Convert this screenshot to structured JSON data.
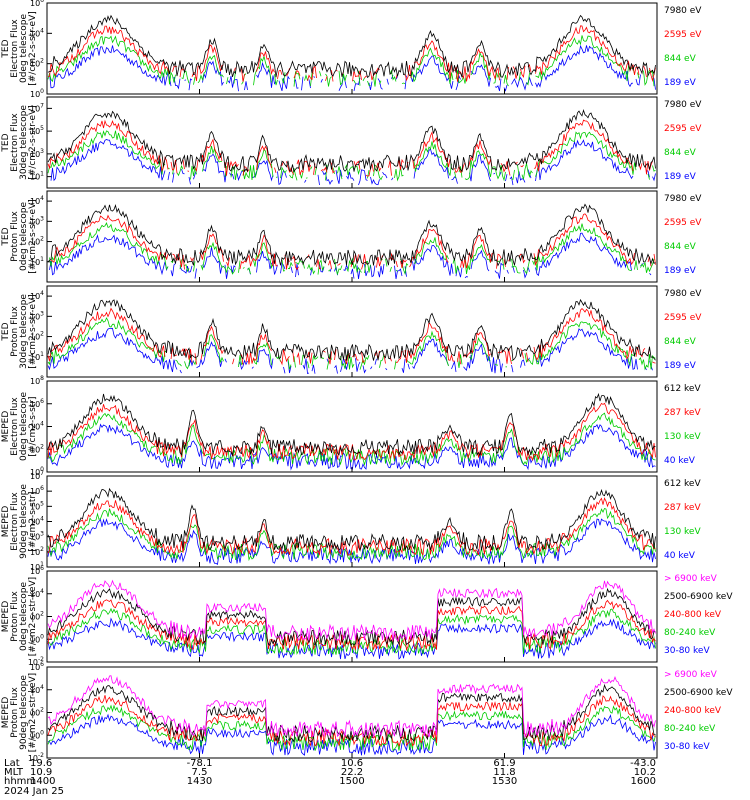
{
  "chart_data": {
    "type": "line",
    "panels": [
      {
        "instrument": "TED",
        "quantity": "Electron Flux",
        "telescope": "0deg telescope",
        "units": "[#/cm2-s-str-eV]",
        "yticks": [
          {
            "e": 6
          },
          {
            "e": 4
          },
          {
            "e": 2
          },
          {
            "e": 0
          }
        ],
        "ylim_exp": [
          0,
          6
        ],
        "legend": [
          {
            "label": "7980 eV",
            "color": "#000000"
          },
          {
            "label": "2595 eV",
            "color": "#ff0000"
          },
          {
            "label": "844 eV",
            "color": "#00cc00"
          },
          {
            "label": "189 eV",
            "color": "#0000ff"
          }
        ]
      },
      {
        "instrument": "TED",
        "quantity": "Electron Flux",
        "telescope": "30deg telescope",
        "units": "[#/cm2-s-str-eV]",
        "yticks": [
          {
            "e": 7
          },
          {
            "e": 5
          },
          {
            "e": 3
          },
          {
            "e": 1
          }
        ],
        "ylim_exp": [
          0,
          8
        ],
        "legend": [
          {
            "label": "7980 eV",
            "color": "#000000"
          },
          {
            "label": "2595 eV",
            "color": "#ff0000"
          },
          {
            "label": "844 eV",
            "color": "#00cc00"
          },
          {
            "label": "189 eV",
            "color": "#0000ff"
          }
        ]
      },
      {
        "instrument": "TED",
        "quantity": "Proton Flux",
        "telescope": "0deg telescope",
        "units": "[#/cm2-s-str-eV]",
        "yticks": [
          {
            "e": 4
          },
          {
            "e": 3
          },
          {
            "e": 2
          },
          {
            "e": 1
          }
        ],
        "ylim_exp": [
          0,
          4.5
        ],
        "legend": [
          {
            "label": "7980 eV",
            "color": "#000000"
          },
          {
            "label": "2595 eV",
            "color": "#ff0000"
          },
          {
            "label": "844 eV",
            "color": "#00cc00"
          },
          {
            "label": "189 eV",
            "color": "#0000ff"
          }
        ]
      },
      {
        "instrument": "TED",
        "quantity": "Proton Flux",
        "telescope": "30deg telescope",
        "units": "[#/cm2-s-str-eV]",
        "yticks": [
          {
            "e": 4
          },
          {
            "e": 3
          },
          {
            "e": 2
          },
          {
            "e": 1
          }
        ],
        "ylim_exp": [
          0,
          4.5
        ],
        "legend": [
          {
            "label": "7980 eV",
            "color": "#000000"
          },
          {
            "label": "2595 eV",
            "color": "#ff0000"
          },
          {
            "label": "844 eV",
            "color": "#00cc00"
          },
          {
            "label": "189 eV",
            "color": "#0000ff"
          }
        ]
      },
      {
        "instrument": "MEPED",
        "quantity": "Electron Flux",
        "telescope": "0deg telescope",
        "units": "[#/cm2-s-str]",
        "yticks": [
          {
            "e": 8
          },
          {
            "e": 6
          },
          {
            "e": 4
          },
          {
            "e": 2
          },
          {
            "e": 0
          }
        ],
        "ylim_exp": [
          0,
          8
        ],
        "legend": [
          {
            "label": "612 keV",
            "color": "#000000"
          },
          {
            "label": "287 keV",
            "color": "#ff0000"
          },
          {
            "label": "130 keV",
            "color": "#00cc00"
          },
          {
            "label": "40 keV",
            "color": "#0000ff"
          }
        ]
      },
      {
        "instrument": "MEPED",
        "quantity": "Electron Flux",
        "telescope": "90deg telescope",
        "units": "[#/cm2-s-str]",
        "yticks": [
          {
            "e": 7
          },
          {
            "e": 6
          },
          {
            "e": 5
          },
          {
            "e": 4
          },
          {
            "e": 3
          },
          {
            "e": 2
          },
          {
            "e": 1
          }
        ],
        "ylim_exp": [
          1,
          7
        ],
        "legend": [
          {
            "label": "612 keV",
            "color": "#000000"
          },
          {
            "label": "287 keV",
            "color": "#ff0000"
          },
          {
            "label": "130 keV",
            "color": "#00cc00"
          },
          {
            "label": "40 keV",
            "color": "#0000ff"
          }
        ]
      },
      {
        "instrument": "MEPED",
        "quantity": "Proton Flux",
        "telescope": "0deg telescope",
        "units": "[#/cm2-s-str-keV]",
        "yticks": [
          {
            "e": 6
          },
          {
            "e": 4
          },
          {
            "e": 2
          },
          {
            "e": 0
          },
          {
            "e": -2
          }
        ],
        "ylim_exp": [
          -2,
          6
        ],
        "legend": [
          {
            "label": "> 6900 keV",
            "color": "#ff00ff"
          },
          {
            "label": "2500-6900 keV",
            "color": "#000000"
          },
          {
            "label": "240-800 keV",
            "color": "#ff0000"
          },
          {
            "label": "80-240 keV",
            "color": "#00cc00"
          },
          {
            "label": "30-80 keV",
            "color": "#0000ff"
          }
        ]
      },
      {
        "instrument": "MEPED",
        "quantity": "Proton Flux",
        "telescope": "90deg telescope",
        "units": "[#/cm2-s-str-keV]",
        "yticks": [
          {
            "e": 6
          },
          {
            "e": 4
          },
          {
            "e": 2
          },
          {
            "e": 0
          },
          {
            "e": -2
          }
        ],
        "ylim_exp": [
          -2,
          6
        ],
        "legend": [
          {
            "label": "> 6900 keV",
            "color": "#ff00ff"
          },
          {
            "label": "2500-6900 keV",
            "color": "#000000"
          },
          {
            "label": "240-800 keV",
            "color": "#ff0000"
          },
          {
            "label": "80-240 keV",
            "color": "#00cc00"
          },
          {
            "label": "30-80 keV",
            "color": "#0000ff"
          }
        ]
      }
    ],
    "x_axis": {
      "row_labels": [
        "Lat",
        "MLT",
        "hhmm"
      ],
      "ticks": [
        {
          "lat": "19.6",
          "mlt": "10.9",
          "hhmm": "1400"
        },
        {
          "lat": "-78.1",
          "mlt": "7.5",
          "hhmm": "1430"
        },
        {
          "lat": "10.6",
          "mlt": "22.2",
          "hhmm": "1500"
        },
        {
          "lat": "61.9",
          "mlt": "11.8",
          "hhmm": "1530"
        },
        {
          "lat": "-43.0",
          "mlt": "10.2",
          "hhmm": "1600"
        }
      ],
      "date": "2024 Jan 25"
    }
  }
}
